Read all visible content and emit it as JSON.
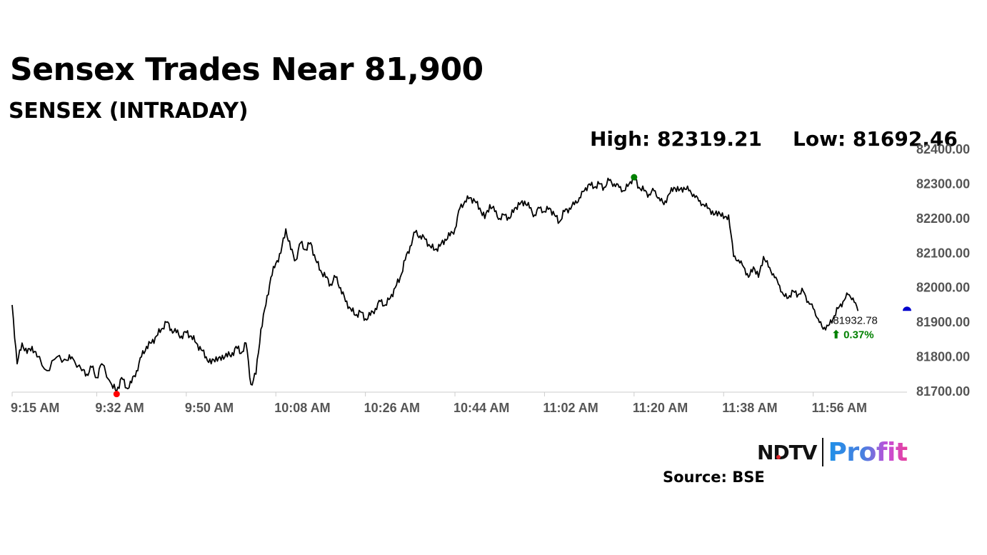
{
  "header": {
    "title": "Sensex Trades Near 81,900",
    "subtitle": "SENSEX (INTRADAY)",
    "high_label": "High: 82319.21",
    "low_label": "Low: 81692.46"
  },
  "footer": {
    "brand_ndtv": "NDTV",
    "brand_profit": "Profit",
    "source": "Source: BSE"
  },
  "colors": {
    "line": "#000000",
    "high_marker": "#008000",
    "low_marker": "#ff0000",
    "last_marker": "#0000cc",
    "change_positive": "#008000",
    "axis": "#cccccc",
    "brand_red": "#e0262b"
  },
  "chart_data": {
    "type": "line",
    "title": "SENSEX (INTRADAY)",
    "x_tick_labels": [
      "9:15 AM",
      "9:32 AM",
      "9:50 AM",
      "10:08 AM",
      "10:26 AM",
      "10:44 AM",
      "11:02 AM",
      "11:20 AM",
      "11:38 AM",
      "11:56 AM"
    ],
    "y_tick_labels": [
      "81700.00",
      "81800.00",
      "81900.00",
      "82000.00",
      "82100.00",
      "82200.00",
      "82300.00",
      "82400.00"
    ],
    "ylim": [
      81700,
      82400
    ],
    "y_axis_position": "right",
    "grid": false,
    "series": [
      {
        "points": [
          [
            "9:15 AM",
            81950
          ],
          [
            "9:16 AM",
            81780
          ],
          [
            "9:17 AM",
            81840
          ],
          [
            "9:18 AM",
            81810
          ],
          [
            "9:19 AM",
            81830
          ],
          [
            "9:20 AM",
            81800
          ],
          [
            "9:22 AM",
            81760
          ],
          [
            "9:24 AM",
            81800
          ],
          [
            "9:26 AM",
            81790
          ],
          [
            "9:27 AM",
            81800
          ],
          [
            "9:29 AM",
            81760
          ],
          [
            "9:30 AM",
            81750
          ],
          [
            "9:31 AM",
            81770
          ],
          [
            "9:32 AM",
            81740
          ],
          [
            "9:33 AM",
            81780
          ],
          [
            "9:35 AM",
            81720
          ],
          [
            "9:36 AM",
            81700
          ],
          [
            "9:37 AM",
            81740
          ],
          [
            "9:38 AM",
            81710
          ],
          [
            "9:39 AM",
            81725
          ],
          [
            "9:40 AM",
            81760
          ],
          [
            "9:41 AM",
            81800
          ],
          [
            "9:42 AM",
            81830
          ],
          [
            "9:43 AM",
            81840
          ],
          [
            "9:44 AM",
            81860
          ],
          [
            "9:45 AM",
            81880
          ],
          [
            "9:46 AM",
            81900
          ],
          [
            "9:47 AM",
            81880
          ],
          [
            "9:48 AM",
            81870
          ],
          [
            "9:49 AM",
            81860
          ],
          [
            "9:50 AM",
            81870
          ],
          [
            "9:51 AM",
            81860
          ],
          [
            "9:52 AM",
            81840
          ],
          [
            "9:53 AM",
            81820
          ],
          [
            "9:54 AM",
            81800
          ],
          [
            "9:55 AM",
            81780
          ],
          [
            "9:56 AM",
            81800
          ],
          [
            "9:57 AM",
            81790
          ],
          [
            "9:58 AM",
            81810
          ],
          [
            "9:59 AM",
            81800
          ],
          [
            "10:00 AM",
            81830
          ],
          [
            "10:01 AM",
            81810
          ],
          [
            "10:02 AM",
            81840
          ],
          [
            "10:03 AM",
            81720
          ],
          [
            "10:04 AM",
            81750
          ],
          [
            "10:05 AM",
            81880
          ],
          [
            "10:06 AM",
            81950
          ],
          [
            "10:07 AM",
            82030
          ],
          [
            "10:08 AM",
            82070
          ],
          [
            "10:09 AM",
            82100
          ],
          [
            "10:10 AM",
            82170
          ],
          [
            "10:11 AM",
            82110
          ],
          [
            "10:12 AM",
            82080
          ],
          [
            "10:13 AM",
            82130
          ],
          [
            "10:14 AM",
            82110
          ],
          [
            "10:15 AM",
            82130
          ],
          [
            "10:16 AM",
            82080
          ],
          [
            "10:17 AM",
            82050
          ],
          [
            "10:18 AM",
            82030
          ],
          [
            "10:19 AM",
            82010
          ],
          [
            "10:20 AM",
            82030
          ],
          [
            "10:21 AM",
            82000
          ],
          [
            "10:22 AM",
            81960
          ],
          [
            "10:23 AM",
            81940
          ],
          [
            "10:24 AM",
            81920
          ],
          [
            "10:25 AM",
            81930
          ],
          [
            "10:26 AM",
            81910
          ],
          [
            "10:27 AM",
            81920
          ],
          [
            "10:28 AM",
            81940
          ],
          [
            "10:29 AM",
            81960
          ],
          [
            "10:30 AM",
            81950
          ],
          [
            "10:31 AM",
            81970
          ],
          [
            "10:32 AM",
            82000
          ],
          [
            "10:33 AM",
            82030
          ],
          [
            "10:34 AM",
            82080
          ],
          [
            "10:35 AM",
            82120
          ],
          [
            "10:36 AM",
            82160
          ],
          [
            "10:37 AM",
            82150
          ],
          [
            "10:38 AM",
            82140
          ],
          [
            "10:39 AM",
            82120
          ],
          [
            "10:40 AM",
            82110
          ],
          [
            "10:41 AM",
            82120
          ],
          [
            "10:42 AM",
            82140
          ],
          [
            "10:43 AM",
            82150
          ],
          [
            "10:44 AM",
            82170
          ],
          [
            "10:45 AM",
            82230
          ],
          [
            "10:46 AM",
            82250
          ],
          [
            "10:47 AM",
            82260
          ],
          [
            "10:48 AM",
            82250
          ],
          [
            "10:49 AM",
            82230
          ],
          [
            "10:50 AM",
            82200
          ],
          [
            "10:51 AM",
            82240
          ],
          [
            "10:52 AM",
            82220
          ],
          [
            "10:53 AM",
            82200
          ],
          [
            "10:54 AM",
            82210
          ],
          [
            "10:55 AM",
            82200
          ],
          [
            "10:56 AM",
            82230
          ],
          [
            "10:57 AM",
            82240
          ],
          [
            "10:58 AM",
            82250
          ],
          [
            "10:59 AM",
            82230
          ],
          [
            "11:00 AM",
            82210
          ],
          [
            "11:01 AM",
            82230
          ],
          [
            "11:02 AM",
            82220
          ],
          [
            "11:03 AM",
            82230
          ],
          [
            "11:04 AM",
            82210
          ],
          [
            "11:05 AM",
            82190
          ],
          [
            "11:06 AM",
            82220
          ],
          [
            "11:07 AM",
            82230
          ],
          [
            "11:08 AM",
            82240
          ],
          [
            "11:09 AM",
            82260
          ],
          [
            "11:10 AM",
            82280
          ],
          [
            "11:11 AM",
            82300
          ],
          [
            "11:12 AM",
            82290
          ],
          [
            "11:13 AM",
            82300
          ],
          [
            "11:14 AM",
            82290
          ],
          [
            "11:15 AM",
            82310
          ],
          [
            "11:16 AM",
            82300
          ],
          [
            "11:17 AM",
            82290
          ],
          [
            "11:18 AM",
            82280
          ],
          [
            "11:19 AM",
            82300
          ],
          [
            "11:20 AM",
            82319
          ],
          [
            "11:21 AM",
            82290
          ],
          [
            "11:22 AM",
            82280
          ],
          [
            "11:23 AM",
            82270
          ],
          [
            "11:24 AM",
            82280
          ],
          [
            "11:25 AM",
            82260
          ],
          [
            "11:26 AM",
            82240
          ],
          [
            "11:27 AM",
            82270
          ],
          [
            "11:28 AM",
            82290
          ],
          [
            "11:29 AM",
            82280
          ],
          [
            "11:30 AM",
            82290
          ],
          [
            "11:31 AM",
            82280
          ],
          [
            "11:32 AM",
            82270
          ],
          [
            "11:33 AM",
            82250
          ],
          [
            "11:34 AM",
            82240
          ],
          [
            "11:35 AM",
            82230
          ],
          [
            "11:36 AM",
            82210
          ],
          [
            "11:37 AM",
            82220
          ],
          [
            "11:38 AM",
            82200
          ],
          [
            "11:39 AM",
            82210
          ],
          [
            "11:40 AM",
            82090
          ],
          [
            "11:41 AM",
            82080
          ],
          [
            "11:42 AM",
            82060
          ],
          [
            "11:43 AM",
            82030
          ],
          [
            "11:44 AM",
            82060
          ],
          [
            "11:45 AM",
            82030
          ],
          [
            "11:46 AM",
            82090
          ],
          [
            "11:47 AM",
            82060
          ],
          [
            "11:48 AM",
            82040
          ],
          [
            "11:49 AM",
            82010
          ],
          [
            "11:50 AM",
            81980
          ],
          [
            "11:51 AM",
            81970
          ],
          [
            "11:52 AM",
            81990
          ],
          [
            "11:53 AM",
            81980
          ],
          [
            "11:54 AM",
            81990
          ],
          [
            "11:55 AM",
            81960
          ],
          [
            "11:56 AM",
            81940
          ],
          [
            "11:57 AM",
            81910
          ],
          [
            "11:58 AM",
            81880
          ],
          [
            "11:59 AM",
            81890
          ],
          [
            "12:00 PM",
            81910
          ],
          [
            "12:01 PM",
            81940
          ],
          [
            "12:02 PM",
            81960
          ],
          [
            "12:03 PM",
            81980
          ],
          [
            "12:04 PM",
            81970
          ],
          [
            "12:05 PM",
            81932.78
          ]
        ]
      }
    ],
    "annotations": {
      "high": {
        "time": "11:20 AM",
        "value": 82319.21
      },
      "low": {
        "time": "9:36 AM",
        "value": 81692.46
      },
      "last": {
        "value": 81932.78,
        "label": "81932.78",
        "change": "0.37%"
      }
    }
  }
}
